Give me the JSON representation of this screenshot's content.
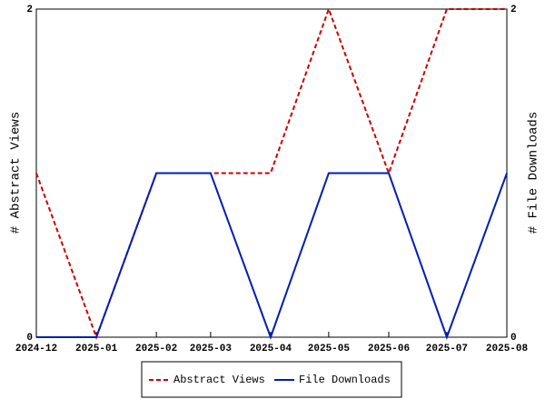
{
  "chart_data": {
    "type": "line",
    "x": [
      "2024-12",
      "2025-01",
      "2025-02",
      "2025-03",
      "2025-04",
      "2025-05",
      "2025-06",
      "2025-07",
      "2025-08"
    ],
    "y_label": "# Abstract Views",
    "y2_label": "# File Downloads",
    "ylim": [
      0,
      2
    ],
    "yticks": [
      0,
      2
    ],
    "y2lim": [
      0,
      2
    ],
    "y2ticks": [
      0,
      2
    ],
    "legend": "bottom",
    "series": [
      {
        "name": "Abstract Views",
        "color": "#cc0000",
        "dash": true,
        "values": [
          1,
          0,
          1,
          1,
          1,
          2,
          1,
          2,
          2
        ]
      },
      {
        "name": "File Downloads",
        "color": "#001eb4",
        "dash": false,
        "axis": "y2",
        "values": [
          0,
          0,
          1,
          1,
          0,
          1,
          1,
          0,
          1
        ]
      }
    ]
  }
}
